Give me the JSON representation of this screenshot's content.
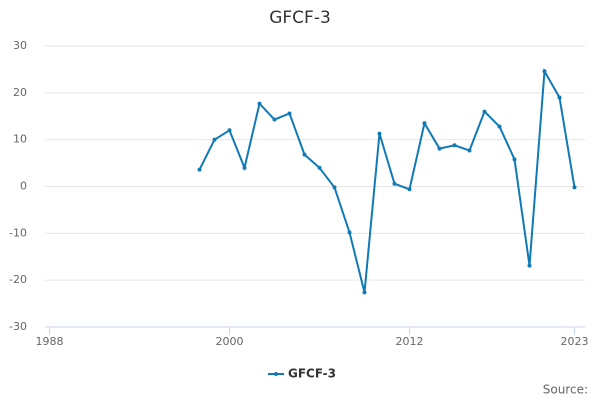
{
  "chart_data": {
    "type": "line",
    "title": "GFCF-3",
    "source": "Source:",
    "x": [
      1998,
      1999,
      2000,
      2001,
      2002,
      2003,
      2004,
      2005,
      2006,
      2007,
      2008,
      2009,
      2010,
      2011,
      2012,
      2013,
      2014,
      2015,
      2016,
      2017,
      2018,
      2019,
      2020,
      2021,
      2022,
      2023
    ],
    "series": [
      {
        "name": "GFCF-3",
        "color": "#117ab5",
        "values": [
          3.6,
          10,
          12,
          4,
          17.7,
          14.3,
          15.6,
          6.8,
          4,
          -0.2,
          -9.8,
          -22.6,
          11.3,
          0.6,
          -0.6,
          13.5,
          8.1,
          8.8,
          7.7,
          16,
          12.8,
          5.8,
          -16.9,
          24.6,
          19,
          -0.2
        ]
      }
    ],
    "xlim": [
      1987.7,
      2023.7
    ],
    "xticks": [
      1988,
      2000,
      2012,
      2023
    ],
    "ylim": [
      -30,
      30
    ],
    "yticks": [
      -30,
      -20,
      -10,
      0,
      10,
      20,
      30
    ],
    "grid": true,
    "legend": "bottom"
  }
}
